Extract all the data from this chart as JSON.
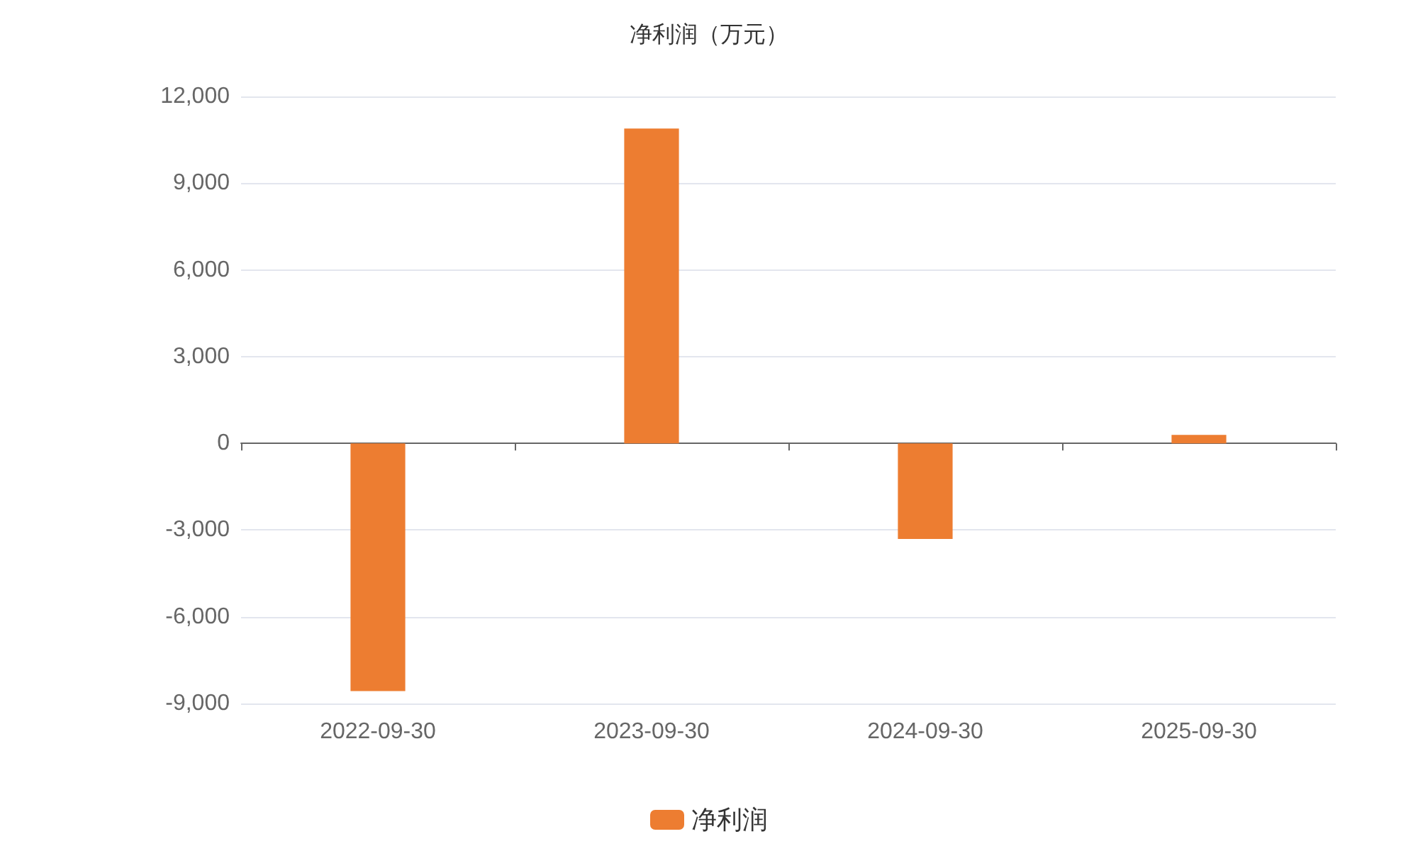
{
  "chart_data": {
    "type": "bar",
    "title": "净利润（万元）",
    "categories": [
      "2022-09-30",
      "2023-09-30",
      "2024-09-30",
      "2025-09-30"
    ],
    "series": [
      {
        "name": "净利润",
        "color": "#ed7d31",
        "values": [
          -8570,
          10890,
          -3310,
          290
        ]
      }
    ],
    "ylim": [
      -9000,
      12000
    ],
    "yticks": [
      {
        "value": -9000,
        "label": "-9,000"
      },
      {
        "value": -6000,
        "label": "-6,000"
      },
      {
        "value": -3000,
        "label": "-3,000"
      },
      0,
      {
        "value": 3000,
        "label": "3,000"
      },
      {
        "value": 6000,
        "label": "6,000"
      },
      {
        "value": 9000,
        "label": "9,000"
      },
      {
        "value": 12000,
        "label": "12,000"
      }
    ],
    "grid": "y",
    "legend": "bottom"
  }
}
